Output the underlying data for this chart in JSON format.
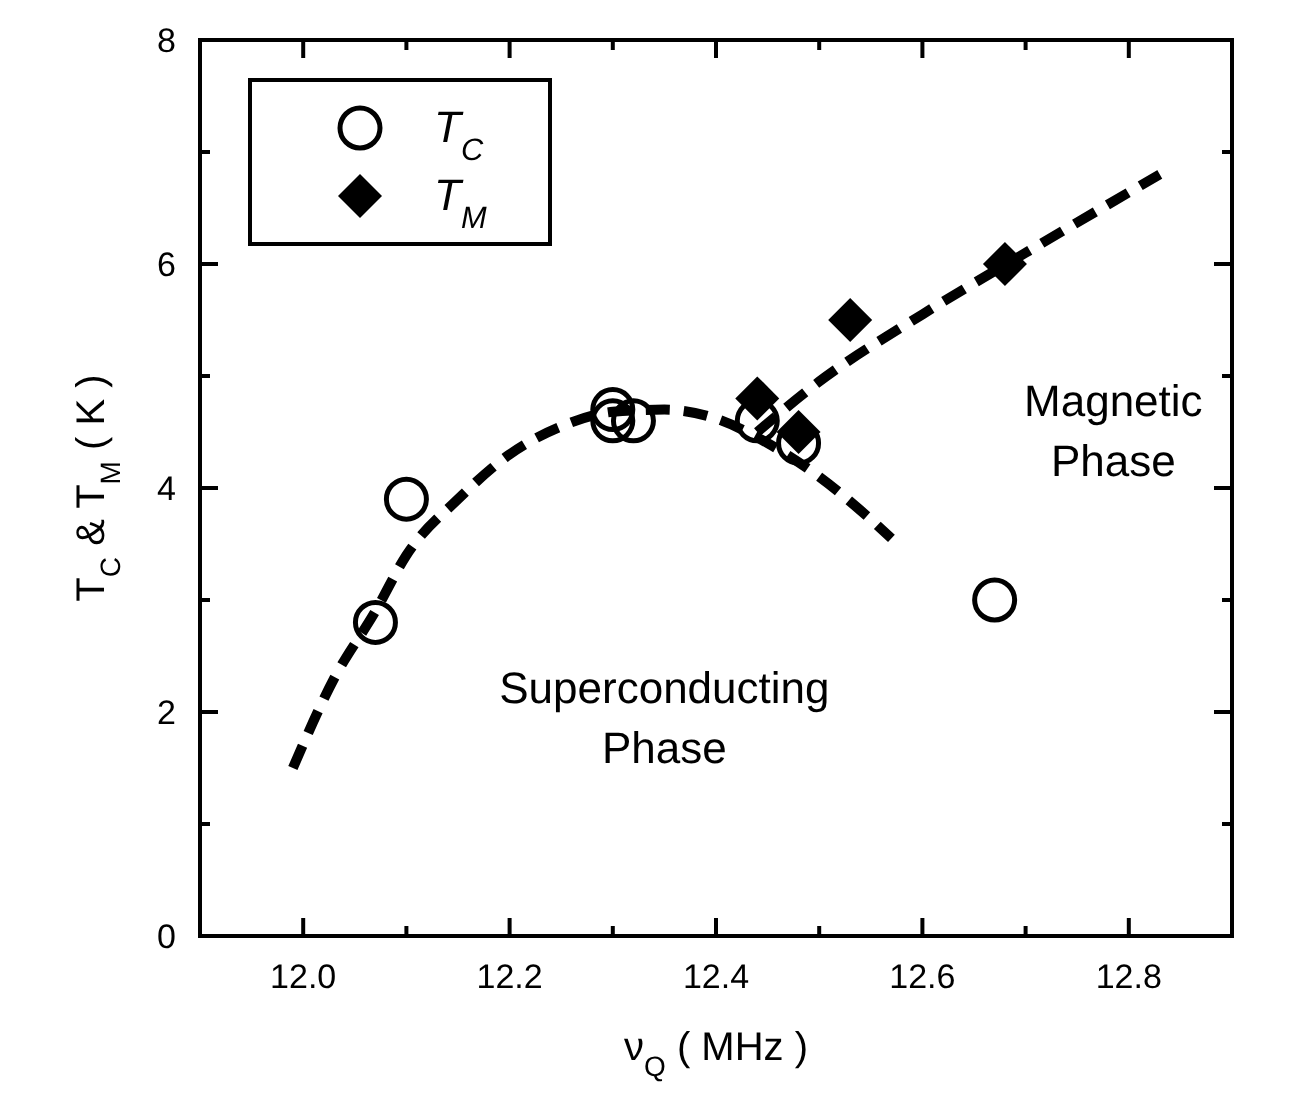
{
  "chart_data": {
    "type": "scatter",
    "xlabel": "ν$_{Q}$ ( MHz )",
    "ylabel": "T$_{C}$ & T$_{M}$ ( K )",
    "xlim": [
      11.9,
      12.9
    ],
    "xticks": [
      {
        "value": 12,
        "label": "12.0"
      },
      12.2,
      12.4,
      12.6,
      12.8
    ],
    "ylim": [
      0,
      8
    ],
    "yticks": [
      0,
      2,
      4,
      6,
      8
    ],
    "grid": false,
    "legend": "top left",
    "series": [
      {
        "name": "T$_{C}$",
        "type": "scatter",
        "marker": "circle",
        "color": "#000000",
        "x": [
          12.07,
          12.1,
          12.3,
          12.3,
          12.32,
          12.44,
          12.48,
          12.67
        ],
        "values": [
          2.8,
          3.9,
          4.7,
          4.6,
          4.6,
          4.6,
          4.4,
          3.0
        ]
      },
      {
        "name": "T$_{M}$",
        "type": "scatter",
        "marker": "diamond",
        "color": "#000000",
        "x": [
          12.44,
          12.48,
          12.53,
          12.68
        ],
        "values": [
          4.8,
          4.5,
          5.5,
          6.0
        ]
      },
      {
        "type": "line",
        "line_style": "dashed",
        "color": "#000000",
        "x": [
          11.99,
          12.03,
          12.07,
          12.1,
          12.15,
          12.2,
          12.25,
          12.3,
          12.35,
          12.4,
          12.45,
          12.5,
          12.54,
          12.57
        ],
        "values": [
          1.5,
          2.3,
          2.9,
          3.4,
          3.9,
          4.3,
          4.55,
          4.68,
          4.7,
          4.62,
          4.4,
          4.1,
          3.8,
          3.55
        ]
      },
      {
        "type": "line",
        "line_style": "dashed",
        "color": "#000000",
        "x": [
          12.44,
          12.5,
          12.6,
          12.7,
          12.83
        ],
        "values": [
          4.5,
          4.95,
          5.55,
          6.1,
          6.8
        ]
      }
    ],
    "annotations": [
      "Superconducting\nPhase",
      "Magnetic\nPhase"
    ]
  }
}
